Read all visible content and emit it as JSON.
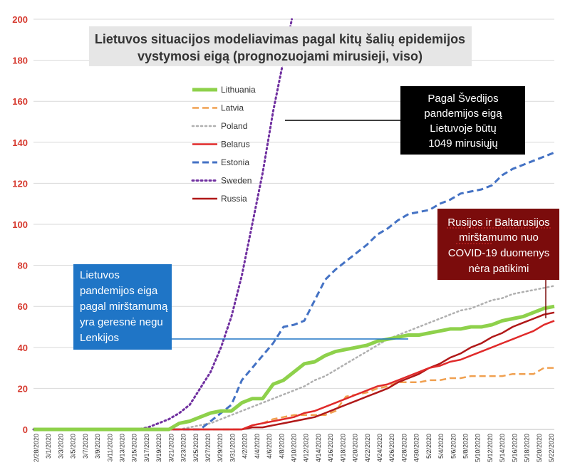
{
  "chart_data": {
    "type": "line",
    "title_lines": [
      "Lietuvos situacijos modeliavimas pagal kitų šalių epidemijos",
      "vystymosi eigą (prognozuojami mirusieji, viso)"
    ],
    "ylim": [
      0,
      200
    ],
    "yticks": [
      0,
      20,
      40,
      60,
      80,
      100,
      120,
      140,
      160,
      180,
      200
    ],
    "xtick_labels": [
      "2/28/2020",
      "3/1/2020",
      "3/3/2020",
      "3/5/2020",
      "3/7/2020",
      "3/9/2020",
      "3/11/2020",
      "3/13/2020",
      "3/15/2020",
      "3/17/2020",
      "3/19/2020",
      "3/21/2020",
      "3/23/2020",
      "3/25/2020",
      "3/27/2020",
      "3/29/2020",
      "3/31/2020",
      "4/2/2020",
      "4/4/2020",
      "4/6/2020",
      "4/8/2020",
      "4/10/2020",
      "4/12/2020",
      "4/14/2020",
      "4/16/2020",
      "4/18/2020",
      "4/20/2020",
      "4/22/2020",
      "4/24/2020",
      "4/26/2020",
      "4/28/2020",
      "4/30/2020",
      "5/2/2020",
      "5/4/2020",
      "5/6/2020",
      "5/8/2020",
      "5/10/2020",
      "5/12/2020",
      "5/14/2020",
      "5/16/2020",
      "5/18/2020",
      "5/20/2020",
      "5/22/2020"
    ],
    "legend_position": "upper-center-left",
    "series": [
      {
        "name": "Lithuania",
        "color": "#8ed14b",
        "style": "solid",
        "width": 5,
        "points": [
          [
            0,
            0
          ],
          [
            13,
            0
          ],
          [
            14,
            3
          ],
          [
            15,
            4
          ],
          [
            16,
            6
          ],
          [
            17,
            8
          ],
          [
            18,
            9
          ],
          [
            19,
            9
          ],
          [
            20,
            13
          ],
          [
            21,
            15
          ],
          [
            22,
            15
          ],
          [
            23,
            22
          ],
          [
            24,
            24
          ],
          [
            25,
            28
          ],
          [
            26,
            32
          ],
          [
            27,
            33
          ],
          [
            28,
            36
          ],
          [
            29,
            38
          ],
          [
            30,
            39
          ],
          [
            31,
            40
          ],
          [
            32,
            41
          ],
          [
            33,
            43
          ],
          [
            34,
            44
          ],
          [
            35,
            45
          ],
          [
            36,
            46
          ],
          [
            37,
            46
          ],
          [
            38,
            47
          ],
          [
            39,
            48
          ],
          [
            40,
            49
          ],
          [
            41,
            49
          ],
          [
            42,
            50
          ],
          [
            43,
            50
          ],
          [
            44,
            51
          ],
          [
            45,
            53
          ],
          [
            46,
            54
          ],
          [
            47,
            55
          ],
          [
            48,
            57
          ],
          [
            49,
            59
          ],
          [
            50,
            60
          ]
        ]
      },
      {
        "name": "Latvia",
        "color": "#f0a050",
        "style": "dashed",
        "width": 2.5,
        "points": [
          [
            0,
            0
          ],
          [
            20,
            0
          ],
          [
            21,
            2
          ],
          [
            22,
            3
          ],
          [
            23,
            5
          ],
          [
            24,
            6
          ],
          [
            25,
            7
          ],
          [
            26,
            7
          ],
          [
            27,
            7
          ],
          [
            28,
            7
          ],
          [
            29,
            9
          ],
          [
            30,
            16
          ],
          [
            31,
            17
          ],
          [
            32,
            18
          ],
          [
            33,
            20
          ],
          [
            34,
            21
          ],
          [
            35,
            23
          ],
          [
            36,
            23
          ],
          [
            37,
            23
          ],
          [
            38,
            24
          ],
          [
            39,
            24
          ],
          [
            40,
            25
          ],
          [
            41,
            25
          ],
          [
            42,
            26
          ],
          [
            43,
            26
          ],
          [
            44,
            26
          ],
          [
            45,
            26
          ],
          [
            46,
            27
          ],
          [
            47,
            27
          ],
          [
            48,
            27
          ],
          [
            49,
            30
          ],
          [
            50,
            30
          ]
        ]
      },
      {
        "name": "Poland",
        "color": "#b0b0b0",
        "style": "dotted",
        "width": 2.5,
        "points": [
          [
            0,
            0
          ],
          [
            14,
            0
          ],
          [
            15,
            1
          ],
          [
            16,
            2
          ],
          [
            17,
            3
          ],
          [
            18,
            5
          ],
          [
            19,
            7
          ],
          [
            20,
            9
          ],
          [
            21,
            11
          ],
          [
            22,
            13
          ],
          [
            23,
            15
          ],
          [
            24,
            17
          ],
          [
            25,
            19
          ],
          [
            26,
            21
          ],
          [
            27,
            24
          ],
          [
            28,
            26
          ],
          [
            29,
            29
          ],
          [
            30,
            32
          ],
          [
            31,
            35
          ],
          [
            32,
            38
          ],
          [
            33,
            41
          ],
          [
            34,
            44
          ],
          [
            35,
            46
          ],
          [
            36,
            48
          ],
          [
            37,
            50
          ],
          [
            38,
            52
          ],
          [
            39,
            54
          ],
          [
            40,
            56
          ],
          [
            41,
            58
          ],
          [
            42,
            59
          ],
          [
            43,
            61
          ],
          [
            44,
            63
          ],
          [
            45,
            64
          ],
          [
            46,
            66
          ],
          [
            47,
            67
          ],
          [
            48,
            68
          ],
          [
            49,
            69
          ],
          [
            50,
            70
          ]
        ]
      },
      {
        "name": "Belarus",
        "color": "#e02a2a",
        "style": "solid",
        "width": 2.5,
        "points": [
          [
            0,
            0
          ],
          [
            20,
            0
          ],
          [
            21,
            2
          ],
          [
            22,
            3
          ],
          [
            23,
            4
          ],
          [
            24,
            5
          ],
          [
            25,
            6
          ],
          [
            26,
            8
          ],
          [
            27,
            9
          ],
          [
            28,
            11
          ],
          [
            29,
            13
          ],
          [
            30,
            15
          ],
          [
            31,
            17
          ],
          [
            32,
            19
          ],
          [
            33,
            21
          ],
          [
            34,
            22
          ],
          [
            35,
            24
          ],
          [
            36,
            26
          ],
          [
            37,
            28
          ],
          [
            38,
            30
          ],
          [
            39,
            31
          ],
          [
            40,
            33
          ],
          [
            41,
            34
          ],
          [
            42,
            36
          ],
          [
            43,
            38
          ],
          [
            44,
            40
          ],
          [
            45,
            42
          ],
          [
            46,
            44
          ],
          [
            47,
            46
          ],
          [
            48,
            48
          ],
          [
            49,
            51
          ],
          [
            50,
            53
          ]
        ]
      },
      {
        "name": "Estonia",
        "color": "#4472c4",
        "style": "dashed",
        "width": 3,
        "points": [
          [
            0,
            0
          ],
          [
            16,
            0
          ],
          [
            17,
            4
          ],
          [
            18,
            8
          ],
          [
            19,
            12
          ],
          [
            20,
            24
          ],
          [
            21,
            30
          ],
          [
            22,
            36
          ],
          [
            23,
            42
          ],
          [
            24,
            50
          ],
          [
            25,
            51
          ],
          [
            26,
            53
          ],
          [
            27,
            63
          ],
          [
            28,
            73
          ],
          [
            29,
            78
          ],
          [
            30,
            82
          ],
          [
            31,
            86
          ],
          [
            32,
            90
          ],
          [
            33,
            95
          ],
          [
            34,
            98
          ],
          [
            35,
            102
          ],
          [
            36,
            105
          ],
          [
            37,
            106
          ],
          [
            38,
            107
          ],
          [
            39,
            110
          ],
          [
            40,
            112
          ],
          [
            41,
            115
          ],
          [
            42,
            116
          ],
          [
            43,
            117
          ],
          [
            44,
            119
          ],
          [
            45,
            124
          ],
          [
            46,
            127
          ],
          [
            47,
            129
          ],
          [
            48,
            131
          ],
          [
            49,
            133
          ],
          [
            50,
            135
          ]
        ]
      },
      {
        "name": "Sweden",
        "color": "#7030a0",
        "style": "dotted",
        "width": 3,
        "points": [
          [
            0,
            0
          ],
          [
            10,
            0
          ],
          [
            11,
            1
          ],
          [
            12,
            3
          ],
          [
            13,
            5
          ],
          [
            14,
            8
          ],
          [
            15,
            12
          ],
          [
            16,
            20
          ],
          [
            17,
            28
          ],
          [
            18,
            40
          ],
          [
            19,
            55
          ],
          [
            20,
            75
          ],
          [
            21,
            100
          ],
          [
            22,
            125
          ],
          [
            23,
            155
          ],
          [
            24,
            180
          ],
          [
            24.8,
            200
          ]
        ]
      },
      {
        "name": "Russia",
        "color": "#b01818",
        "style": "solid",
        "width": 2.5,
        "points": [
          [
            0,
            0
          ],
          [
            20,
            0
          ],
          [
            21,
            1
          ],
          [
            22,
            1
          ],
          [
            23,
            2
          ],
          [
            24,
            3
          ],
          [
            25,
            4
          ],
          [
            26,
            5
          ],
          [
            27,
            6
          ],
          [
            28,
            8
          ],
          [
            29,
            10
          ],
          [
            30,
            12
          ],
          [
            31,
            14
          ],
          [
            32,
            16
          ],
          [
            33,
            18
          ],
          [
            34,
            20
          ],
          [
            35,
            23
          ],
          [
            36,
            25
          ],
          [
            37,
            27
          ],
          [
            38,
            30
          ],
          [
            39,
            32
          ],
          [
            40,
            35
          ],
          [
            41,
            37
          ],
          [
            42,
            40
          ],
          [
            43,
            42
          ],
          [
            44,
            45
          ],
          [
            45,
            47
          ],
          [
            46,
            50
          ],
          [
            47,
            52
          ],
          [
            48,
            54
          ],
          [
            49,
            56
          ],
          [
            50,
            57
          ]
        ]
      }
    ],
    "annotations": [
      {
        "name": "sweden-note",
        "lines": [
          "Pagal Švedijos",
          "pandemijos eigą",
          "Lietuvoje būtų",
          "1049 mirusiųjų"
        ],
        "bg": "#000000",
        "fg": "#ffffff"
      },
      {
        "name": "russia-belarus-note",
        "lines": [
          "Rusijos ir Baltarusijos",
          "mirštamumo nuo",
          "COVID-19 duomenys",
          "nėra patikimi"
        ],
        "bg": "#7b0c0c",
        "fg": "#ffffff"
      },
      {
        "name": "lithuania-note",
        "lines": [
          "Lietuvos",
          "pandemijos eiga",
          "pagal mirštamumą",
          "yra geresnė negu",
          "Lenkijos"
        ],
        "bg": "#1f75c6",
        "fg": "#ffffff"
      }
    ]
  }
}
